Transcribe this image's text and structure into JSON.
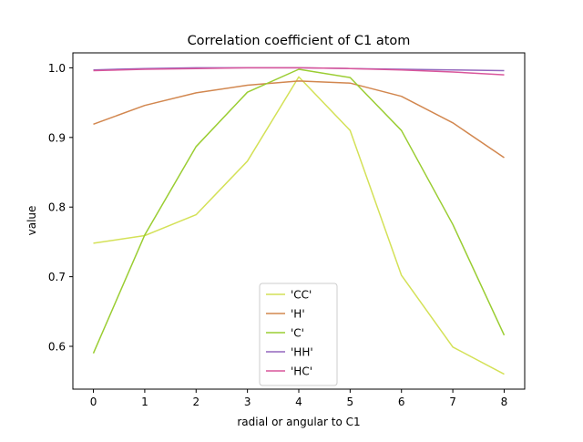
{
  "chart_data": {
    "type": "line",
    "title": "Correlation coefficient of C1 atom",
    "xlabel": "radial or angular to C1",
    "ylabel": "value",
    "x": [
      0,
      1,
      2,
      3,
      4,
      5,
      6,
      7,
      8
    ],
    "xlim": [
      -0.4,
      8.4
    ],
    "ylim": [
      0.5385,
      1.0215
    ],
    "xticks": [
      "0",
      "1",
      "2",
      "3",
      "4",
      "5",
      "6",
      "7",
      "8"
    ],
    "yticks": [
      "0.6",
      "0.7",
      "0.8",
      "0.9",
      "1.0"
    ],
    "grid": false,
    "legend_position": "lower center",
    "series": [
      {
        "name": "'CC'",
        "color": "#d4e157",
        "values": [
          0.748,
          0.759,
          0.789,
          0.866,
          0.987,
          0.91,
          0.702,
          0.599,
          0.56
        ]
      },
      {
        "name": "'H'",
        "color": "#d2874f",
        "values": [
          0.919,
          0.946,
          0.964,
          0.975,
          0.981,
          0.978,
          0.959,
          0.921,
          0.871
        ]
      },
      {
        "name": "'C'",
        "color": "#9acd32",
        "values": [
          0.59,
          0.76,
          0.887,
          0.965,
          0.998,
          0.986,
          0.91,
          0.775,
          0.616
        ]
      },
      {
        "name": "'HH'",
        "color": "#9467bd",
        "values": [
          0.997,
          0.999,
          1.0,
          1.0,
          1.0,
          0.999,
          0.998,
          0.997,
          0.996
        ]
      },
      {
        "name": "'HC'",
        "color": "#d9569b",
        "values": [
          0.996,
          0.998,
          0.999,
          1.0,
          1.0,
          0.999,
          0.997,
          0.994,
          0.99
        ]
      }
    ]
  }
}
